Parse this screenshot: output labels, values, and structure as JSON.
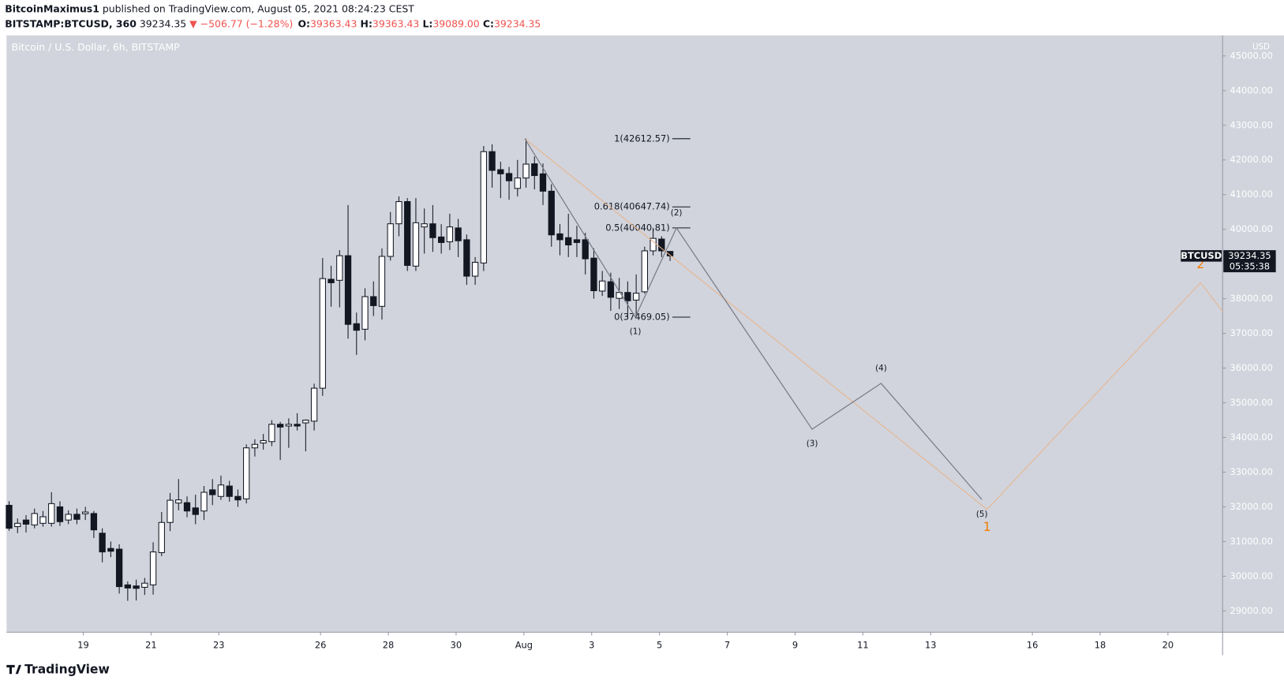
{
  "header": {
    "author": "BitcoinMaximus1",
    "published": "published on TradingView.com, August 05, 2021 08:24:23 CEST",
    "symbol": "BITSTAMP:BTCUSD, 360",
    "last": "39234.35",
    "change": "−506.77 (−1.28%)",
    "ohlc": [
      {
        "key": "O:",
        "value": "39363.43"
      },
      {
        "key": "H:",
        "value": "39363.43"
      },
      {
        "key": "L:",
        "value": "39089.00"
      },
      {
        "key": "C:",
        "value": "39234.35"
      }
    ]
  },
  "footer": {
    "logo": "TradingView"
  },
  "chart_data": {
    "type": "candlestick",
    "title": "Bitcoin / U.S. Dollar, 6h, BITSTAMP",
    "y_unit": "USD",
    "up_color": "#ffffff",
    "down_color": "#131722",
    "open": [
      32044,
      31430,
      31620,
      31478,
      31525,
      31525,
      32000,
      31620,
      31785,
      31800,
      31808,
      31240,
      30800,
      30780,
      29750,
      29720,
      29680,
      29750,
      30680,
      31550,
      32110,
      32120,
      31970,
      31880,
      32490,
      32300,
      32600,
      32300,
      32230,
      33700,
      33840,
      33880,
      34380,
      34330,
      34380,
      34420,
      34470,
      35420,
      38560,
      38530,
      39240,
      37280,
      37120,
      38060,
      37780,
      39220,
      40160,
      40800,
      38940,
      40070,
      40160,
      39780,
      39640,
      40040,
      39700,
      38650,
      39030,
      42240,
      41720,
      41610,
      41180,
      41480,
      41890,
      41600,
      41100,
      39870,
      39760,
      39700,
      39700,
      39170,
      38220,
      38490,
      38010,
      38180,
      37960,
      38200,
      39380,
      39720,
      39363.43
    ],
    "high": [
      32162,
      31666,
      31760,
      31950,
      31880,
      32422,
      32160,
      31900,
      31950,
      32000,
      31880,
      31380,
      31000,
      30920,
      29850,
      29900,
      29950,
      30980,
      31850,
      32400,
      32800,
      32300,
      32350,
      32600,
      32800,
      32900,
      32750,
      32500,
      33800,
      33950,
      34100,
      34500,
      34450,
      34550,
      34700,
      34520,
      35550,
      39170,
      38950,
      39400,
      40700,
      37600,
      38300,
      38500,
      39450,
      40500,
      40950,
      40900,
      40900,
      40600,
      40700,
      40150,
      40450,
      40300,
      39850,
      39200,
      42400,
      42450,
      41950,
      41800,
      42000,
      42612.57,
      42100,
      41900,
      41300,
      40150,
      40450,
      40100,
      39900,
      39450,
      38800,
      38750,
      38600,
      38500,
      38700,
      39500,
      40040.81,
      39800,
      39363.43
    ],
    "low": [
      31312,
      31241,
      31260,
      31380,
      31430,
      31430,
      31450,
      31500,
      31500,
      31620,
      31100,
      30400,
      30550,
      29500,
      29290,
      29300,
      29460,
      29470,
      30580,
      31300,
      31900,
      31700,
      31500,
      31620,
      32050,
      32200,
      32150,
      32000,
      32100,
      33450,
      33650,
      33750,
      33350,
      33700,
      34200,
      33600,
      34200,
      35200,
      37770,
      37750,
      36850,
      36380,
      36800,
      37500,
      37400,
      39100,
      39800,
      38800,
      38800,
      39300,
      39350,
      39300,
      39400,
      39200,
      38400,
      38400,
      38800,
      41200,
      40900,
      40850,
      40950,
      41200,
      41150,
      40700,
      39500,
      39250,
      39200,
      39200,
      38700,
      38000,
      38080,
      37650,
      37700,
      37469.05,
      37500,
      38150,
      39250,
      39200,
      39089
    ],
    "close": [
      31383,
      31525,
      31500,
      31808,
      31714,
      32092,
      31572,
      31785,
      31640,
      31850,
      31336,
      30700,
      30720,
      29700,
      29660,
      29650,
      29800,
      30700,
      31550,
      32190,
      32200,
      31880,
      31780,
      32420,
      32350,
      32630,
      32300,
      32200,
      33700,
      33800,
      33910,
      34380,
      34300,
      34380,
      34330,
      34500,
      35420,
      38580,
      38460,
      39240,
      37260,
      37090,
      38060,
      37800,
      39220,
      40160,
      40800,
      38960,
      40190,
      40160,
      39760,
      39620,
      40070,
      39670,
      38650,
      39050,
      42240,
      41700,
      41600,
      41400,
      41480,
      41880,
      41550,
      41100,
      39840,
      39700,
      39550,
      39620,
      39150,
      38230,
      38510,
      38040,
      38180,
      37940,
      38160,
      39380,
      39740,
      39380,
      39234.35
    ],
    "xlim": [
      -0.3,
      143.2
    ],
    "ylim": [
      28386,
      45590
    ],
    "xticks": [
      {
        "value": 8.75,
        "label": "19"
      },
      {
        "value": 16.75,
        "label": "21"
      },
      {
        "value": 24.75,
        "label": "23"
      },
      {
        "value": 36.75,
        "label": "26"
      },
      {
        "value": 44.75,
        "label": "28"
      },
      {
        "value": 52.75,
        "label": "30"
      },
      {
        "value": 60.75,
        "label": "Aug"
      },
      {
        "value": 68.75,
        "label": "3"
      },
      {
        "value": 76.75,
        "label": "5"
      },
      {
        "value": 84.75,
        "label": "7"
      },
      {
        "value": 92.75,
        "label": "9"
      },
      {
        "value": 100.75,
        "label": "11"
      },
      {
        "value": 108.75,
        "label": "13"
      },
      {
        "value": 120.75,
        "label": "16"
      },
      {
        "value": 128.75,
        "label": "18"
      },
      {
        "value": 136.75,
        "label": "20"
      }
    ],
    "yticks": [
      {
        "value": 29000,
        "label": "29000.00"
      },
      {
        "value": 30000,
        "label": "30000.00"
      },
      {
        "value": 31000,
        "label": "31000.00"
      },
      {
        "value": 32000,
        "label": "32000.00"
      },
      {
        "value": 33000,
        "label": "33000.00"
      },
      {
        "value": 34000,
        "label": "34000.00"
      },
      {
        "value": 35000,
        "label": "35000.00"
      },
      {
        "value": 36000,
        "label": "36000.00"
      },
      {
        "value": 37000,
        "label": "37000.00"
      },
      {
        "value": 38000,
        "label": "38000.00"
      },
      {
        "value": 39000,
        "label": "39000.00"
      },
      {
        "value": 40000,
        "label": "40000.00"
      },
      {
        "value": 41000,
        "label": "41000.00"
      },
      {
        "value": 42000,
        "label": "42000.00"
      },
      {
        "value": 43000,
        "label": "43000.00"
      },
      {
        "value": 44000,
        "label": "44000.00"
      },
      {
        "value": 45000,
        "label": "45000.00"
      }
    ],
    "fib_levels": [
      {
        "label": "1(42612.57)",
        "value": 42612.57
      },
      {
        "label": "0.618(40647.74)",
        "value": 40647.74
      },
      {
        "label": "0.5(40040.81)",
        "value": 40040.81
      },
      {
        "label": "0(37469.05)",
        "value": 37469.05
      }
    ],
    "minor_wave": {
      "color": "#787b86",
      "x": [
        60.86,
        73.9,
        78.75,
        94.76,
        102.9,
        114.8
      ],
      "y": [
        42612.57,
        37469.05,
        40040.81,
        34238,
        35560,
        32209
      ],
      "labels": [
        "(1)",
        "(2)",
        "(3)",
        "(4)",
        "(5)"
      ]
    },
    "major_wave": {
      "color": "#e8b48c",
      "label_color": "#f57c00",
      "x": [
        60.86,
        115.4,
        140.6,
        143.2
      ],
      "y": [
        42612.57,
        31926,
        38463,
        37637
      ],
      "labels": [
        "1",
        "2"
      ]
    },
    "symbol_tag": "BTCUSD",
    "last_price": 39234.35,
    "countdown": "05:35:38"
  }
}
